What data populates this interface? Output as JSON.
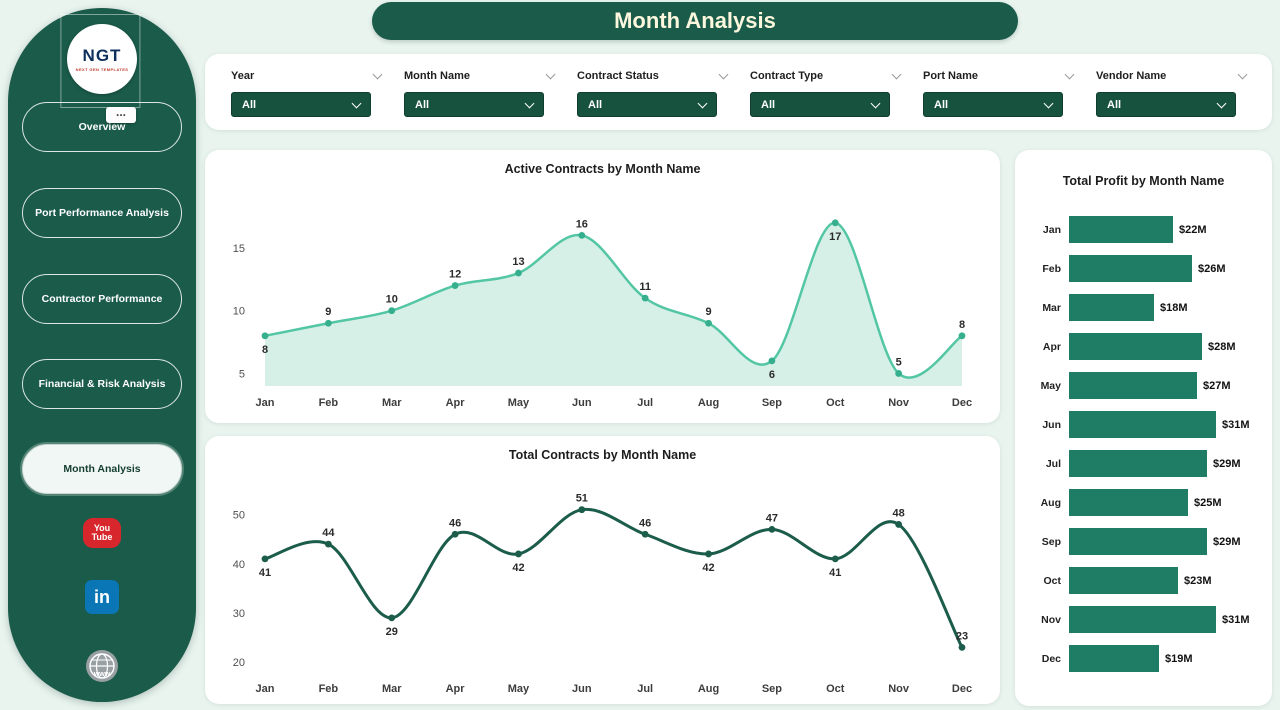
{
  "page": {
    "title": "Month Analysis"
  },
  "sidebar": {
    "logo_text": "NGT",
    "logo_sub": "NEXT GEN TEMPLATES",
    "more_label": "...",
    "items": [
      {
        "label": "Overview",
        "active": false
      },
      {
        "label": "Port Performance Analysis",
        "active": false
      },
      {
        "label": "Contractor Performance",
        "active": false
      },
      {
        "label": "Financial & Risk Analysis",
        "active": false
      },
      {
        "label": "Month Analysis",
        "active": true
      }
    ],
    "youtube_line1": "You",
    "youtube_line2": "Tube",
    "linkedin_label": "in",
    "globe_label": "www"
  },
  "filters": {
    "items": [
      {
        "label": "Year",
        "value": "All"
      },
      {
        "label": "Month Name",
        "value": "All"
      },
      {
        "label": "Contract Status",
        "value": "All"
      },
      {
        "label": "Contract Type",
        "value": "All"
      },
      {
        "label": "Port Name",
        "value": "All"
      },
      {
        "label": "Vendor Name",
        "value": "All"
      }
    ]
  },
  "colors": {
    "dark_green": "#1a5b49",
    "select_green": "#17523f",
    "area_line": "#53c6a4",
    "area_fill": "#d6f0e7",
    "area_dot": "#35af8d",
    "line2": "#1b5c4a",
    "bar": "#1f7d66",
    "header_text": "#fcf7dd"
  },
  "chart_data": [
    {
      "type": "area",
      "title": "Active Contracts by Month Name",
      "categories": [
        "Jan",
        "Feb",
        "Mar",
        "Apr",
        "May",
        "Jun",
        "Jul",
        "Aug",
        "Sep",
        "Oct",
        "Nov",
        "Dec"
      ],
      "values": [
        8,
        9,
        10,
        12,
        13,
        16,
        11,
        9,
        6,
        17,
        5,
        8
      ],
      "xlabel": "Month Name",
      "ylabel": "Active Contracts",
      "ylim": [
        4,
        18.5
      ],
      "yticks": [
        5,
        10,
        15
      ],
      "label_below": [
        0,
        8,
        9
      ],
      "grid": false,
      "legend": "none"
    },
    {
      "type": "line",
      "title": "Total Contracts by Month Name",
      "categories": [
        "Jan",
        "Feb",
        "Mar",
        "Apr",
        "May",
        "Jun",
        "Jul",
        "Aug",
        "Sep",
        "Oct",
        "Nov",
        "Dec"
      ],
      "values": [
        41,
        44,
        29,
        46,
        42,
        51,
        46,
        42,
        47,
        41,
        48,
        23
      ],
      "xlabel": "Month Name",
      "ylabel": "Total Contracts",
      "ylim": [
        18,
        55
      ],
      "yticks": [
        20,
        30,
        40,
        50
      ],
      "label_below": [
        0,
        2,
        4,
        7,
        9
      ],
      "grid": false,
      "legend": "none"
    },
    {
      "type": "bar",
      "orientation": "horizontal",
      "title": "Total Profit by Month Name",
      "categories": [
        "Jan",
        "Feb",
        "Mar",
        "Apr",
        "May",
        "Jun",
        "Jul",
        "Aug",
        "Sep",
        "Oct",
        "Nov",
        "Dec"
      ],
      "values": [
        22,
        26,
        18,
        28,
        27,
        31,
        29,
        25,
        29,
        23,
        31,
        19
      ],
      "labels": [
        "$22M",
        "$26M",
        "$18M",
        "$28M",
        "$27M",
        "$31M",
        "$29M",
        "$25M",
        "$29M",
        "$23M",
        "$31M",
        "$19M"
      ],
      "xlabel": "Total Profit",
      "ylabel": "Month Name",
      "xmax": 31,
      "grid": false,
      "legend": "none"
    }
  ]
}
